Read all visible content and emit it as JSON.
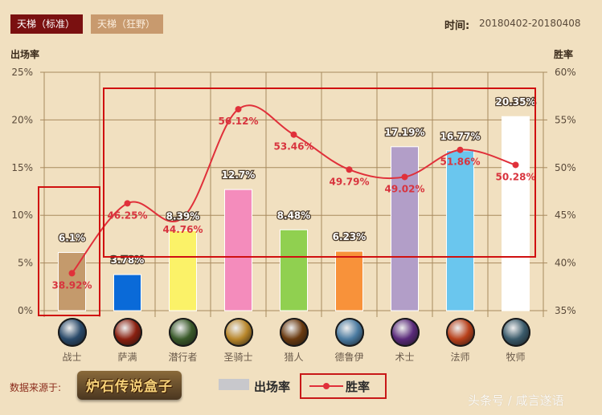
{
  "tabs": [
    {
      "label": "天梯（标准）",
      "active": true
    },
    {
      "label": "天梯（狂野）",
      "active": false
    }
  ],
  "date": {
    "label": "时间:",
    "value": "20180402-20180408"
  },
  "axes": {
    "left_title": "出场率",
    "right_title": "胜率",
    "left_ticks": [
      "25%",
      "20%",
      "15%",
      "10%",
      "5%",
      "0%"
    ],
    "right_ticks": [
      "60%",
      "55%",
      "50%",
      "45%",
      "40%",
      "35%"
    ]
  },
  "classes": [
    {
      "name": "战士",
      "icon": "warrior-icon",
      "color": "#c49a6c",
      "play_rate_label": "6.1%",
      "win_rate_label": "38.92%",
      "icon_bg": "#2a4a6a"
    },
    {
      "name": "萨满",
      "icon": "shaman-icon",
      "color": "#0a6ad8",
      "play_rate_label": "3.78%",
      "win_rate_label": "46.25%",
      "icon_bg": "#8a2010"
    },
    {
      "name": "潜行者",
      "icon": "rogue-icon",
      "color": "#fbf268",
      "play_rate_label": "8.39%",
      "win_rate_label": "44.76%",
      "icon_bg": "#3a5a2a"
    },
    {
      "name": "圣骑士",
      "icon": "paladin-icon",
      "color": "#f48cbc",
      "play_rate_label": "12.7%",
      "win_rate_label": "56.12%",
      "icon_bg": "#b8862a"
    },
    {
      "name": "猎人",
      "icon": "hunter-icon",
      "color": "#90d050",
      "play_rate_label": "8.48%",
      "win_rate_label": "53.46%",
      "icon_bg": "#6a3a10"
    },
    {
      "name": "德鲁伊",
      "icon": "druid-icon",
      "color": "#f8923a",
      "play_rate_label": "6.23%",
      "win_rate_label": "49.79%",
      "icon_bg": "#4a7aa0"
    },
    {
      "name": "术士",
      "icon": "warlock-icon",
      "color": "#b29ec8",
      "play_rate_label": "17.19%",
      "win_rate_label": "49.02%",
      "icon_bg": "#5a2a7a"
    },
    {
      "name": "法师",
      "icon": "mage-icon",
      "color": "#6ac6ee",
      "play_rate_label": "16.77%",
      "win_rate_label": "51.86%",
      "icon_bg": "#b8401a"
    },
    {
      "name": "牧师",
      "icon": "priest-icon",
      "color": "#ffffff",
      "play_rate_label": "20.35%",
      "win_rate_label": "50.28%",
      "icon_bg": "#3a5a6a"
    }
  ],
  "legend": {
    "bar_label": "出场率",
    "line_label": "胜率",
    "line_color": "#e0303a",
    "bar_swatch_color": "#c8c8cc"
  },
  "source": {
    "label": "数据来源于:",
    "logo_text": "炉石传说盒子"
  },
  "watermark": "头条号 / 咸言遂语",
  "chart_data": {
    "type": "bar",
    "title": "",
    "categories": [
      "战士",
      "萨满",
      "潜行者",
      "圣骑士",
      "猎人",
      "德鲁伊",
      "术士",
      "法师",
      "牧师"
    ],
    "series": [
      {
        "name": "出场率",
        "type": "bar",
        "axis": "left",
        "values": [
          6.1,
          3.78,
          8.39,
          12.7,
          8.48,
          6.23,
          17.19,
          16.77,
          20.35
        ],
        "colors": [
          "#c49a6c",
          "#0a6ad8",
          "#fbf268",
          "#f48cbc",
          "#90d050",
          "#f8923a",
          "#b29ec8",
          "#6ac6ee",
          "#ffffff"
        ]
      },
      {
        "name": "胜率",
        "type": "line",
        "axis": "right",
        "smooth": true,
        "values": [
          38.92,
          46.25,
          44.76,
          56.12,
          53.46,
          49.79,
          49.02,
          51.86,
          50.28
        ],
        "color": "#e0303a"
      }
    ],
    "ylabel": "出场率",
    "ylabel_right": "胜率",
    "ylim": [
      0,
      25
    ],
    "ylim_right": [
      35,
      60
    ],
    "yticks": [
      0,
      5,
      10,
      15,
      20,
      25
    ],
    "yticks_right": [
      35,
      40,
      45,
      50,
      55,
      60
    ],
    "grid": true,
    "legend_position": "bottom",
    "annotations": [
      {
        "type": "highlight-box",
        "around": [
          "战士"
        ]
      },
      {
        "type": "highlight-box",
        "around": [
          "萨满",
          "潜行者",
          "圣骑士",
          "猎人",
          "德鲁伊",
          "术士",
          "法师",
          "牧师"
        ]
      }
    ]
  }
}
